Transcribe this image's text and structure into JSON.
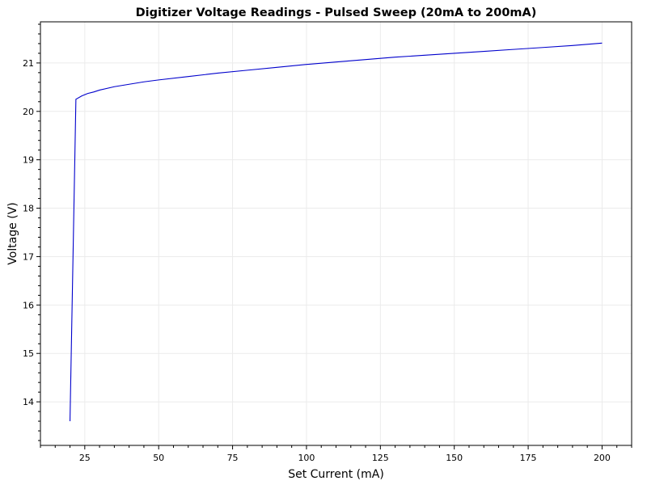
{
  "chart_data": {
    "type": "line",
    "title": "Digitizer Voltage Readings - Pulsed Sweep (20mA to 200mA)",
    "xlabel": "Set Current (mA)",
    "ylabel": "Voltage (V)",
    "xlim": [
      10,
      210
    ],
    "ylim": [
      13.1,
      21.85
    ],
    "xticks": [
      25,
      50,
      75,
      100,
      125,
      150,
      175,
      200
    ],
    "yticks": [
      14,
      15,
      16,
      17,
      18,
      19,
      20,
      21
    ],
    "grid": true,
    "legend": "none",
    "series": [
      {
        "color": "#0000cc",
        "x": [
          20,
          22,
          24,
          26,
          28,
          30,
          35,
          40,
          45,
          50,
          60,
          70,
          80,
          90,
          100,
          110,
          120,
          130,
          140,
          150,
          160,
          170,
          180,
          190,
          200
        ],
        "y": [
          13.6,
          20.25,
          20.32,
          20.37,
          20.4,
          20.44,
          20.51,
          20.56,
          20.61,
          20.65,
          20.72,
          20.79,
          20.85,
          20.91,
          20.97,
          21.02,
          21.07,
          21.12,
          21.16,
          21.2,
          21.24,
          21.28,
          21.32,
          21.36,
          21.41
        ]
      }
    ]
  }
}
